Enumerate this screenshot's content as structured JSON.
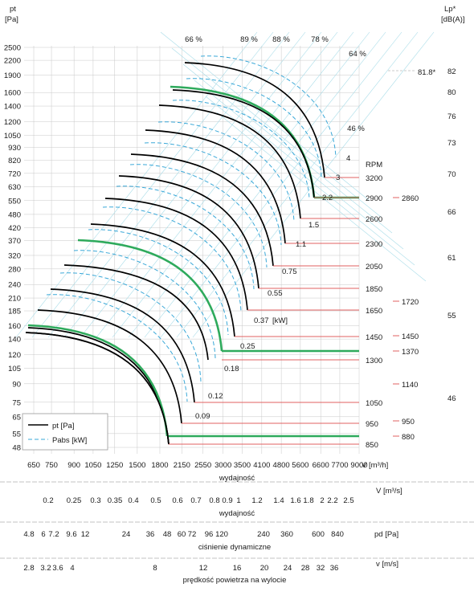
{
  "chart_data": {
    "type": "line",
    "y_axis_left": {
      "title_line1": "pt",
      "title_line2": "[Pa]",
      "scale": "log",
      "ticks": [
        "2500",
        "2200",
        "1900",
        "1600",
        "1400",
        "1200",
        "1050",
        "930",
        "820",
        "720",
        "630",
        "550",
        "480",
        "420",
        "370",
        "320",
        "280",
        "240",
        "210",
        "185",
        "160",
        "140",
        "120",
        "105",
        "90",
        "75",
        "65",
        "55",
        "48"
      ]
    },
    "y_axis_right": {
      "title_line1": "Lp*",
      "title_line2": "[dB(A)]",
      "ticks": [
        "82",
        "80",
        "76",
        "73",
        "70",
        "66",
        "61",
        "55",
        "46"
      ],
      "marker_label": "81.8*"
    },
    "x_axis_volume_m3h": {
      "scale": "log",
      "ticks": [
        "650",
        "750",
        "900",
        "1050",
        "1250",
        "1500",
        "1800",
        "2150",
        "2550",
        "3000",
        "3500",
        "4100",
        "4800",
        "5600",
        "6600",
        "7700",
        "9000"
      ],
      "axis_symbol": "V [m³/h]",
      "title": "wydajność"
    },
    "x_axis_volume_m3s": {
      "ticks": [
        "0.2",
        "0.25",
        "0.3",
        "0.35",
        "0.4",
        "0.5",
        "0.6",
        "0.7",
        "0.8",
        "0.9",
        "1",
        "1.2",
        "1.4",
        "1.6",
        "1.8",
        "2",
        "2.2",
        "2.5"
      ],
      "axis_symbol": "V  [m³/s]",
      "title": "wydajność"
    },
    "x_axis_dynamic_pressure": {
      "ticks": [
        "4.8",
        "6",
        "7.2",
        "9.6",
        "12",
        "24",
        "36",
        "48",
        "60",
        "72",
        "96",
        "120",
        "240",
        "360",
        "600",
        "840"
      ],
      "axis_symbol": "pd  [Pa]",
      "title": "ciśnienie dynamiczne"
    },
    "x_axis_outlet_velocity": {
      "ticks": [
        "2.8",
        "3.2",
        "3.6",
        "4",
        "8",
        "12",
        "16",
        "20",
        "24",
        "28",
        "32",
        "36"
      ],
      "axis_symbol": "v  [m/s]",
      "title": "prędkość powietrza na wylocie"
    },
    "efficiency_labels": [
      "66 %",
      "89 %",
      "88 %",
      "78 %",
      "64 %",
      "46 %"
    ],
    "rpm_title": "RPM",
    "rpm_lines": [
      "3200",
      "2900",
      "2600",
      "2300",
      "2050",
      "1850",
      "1650",
      "1450",
      "1300",
      "1050",
      "950",
      "850"
    ],
    "rpm_secondary": [
      "2860",
      "1720",
      "1450",
      "1370",
      "1140",
      "950",
      "880"
    ],
    "power_labels": [
      "4",
      "3",
      "2.2",
      "1.5",
      "1.1",
      "0.75",
      "0.55",
      "0.37",
      "0.25",
      "0.18",
      "0.12",
      "0.09"
    ],
    "power_unit": "[kW]",
    "legend": [
      "pt [Pa]",
      "Pabs [kW]"
    ],
    "series_curves": [
      {
        "rpm": 3200,
        "color": "#000000"
      },
      {
        "rpm": 3050,
        "color": "#2eaa5c"
      },
      {
        "rpm": 2900,
        "color": "#000000"
      },
      {
        "rpm": 2750,
        "color": "#000000"
      },
      {
        "rpm": 2600,
        "color": "#000000"
      },
      {
        "rpm": 2450,
        "color": "#000000"
      },
      {
        "rpm": 2300,
        "color": "#000000"
      },
      {
        "rpm": 2175,
        "color": "#000000"
      },
      {
        "rpm": 2050,
        "color": "#000000"
      },
      {
        "rpm": 1850,
        "color": "#000000"
      },
      {
        "rpm": 1730,
        "color": "#2eaa5c"
      },
      {
        "rpm": 1650,
        "color": "#000000"
      },
      {
        "rpm": 1450,
        "color": "#000000"
      },
      {
        "rpm": 1300,
        "color": "#000000"
      },
      {
        "rpm": 1050,
        "color": "#000000"
      },
      {
        "rpm": 950,
        "color": "#000000"
      },
      {
        "rpm": 880,
        "color": "#2eaa5c"
      },
      {
        "rpm": 850,
        "color": "#000000"
      }
    ],
    "colors": {
      "pt": "#000000",
      "pabs": "#3aa8d8",
      "highlight": "#2eaa5c",
      "rpm_line": "#e06060",
      "grid": "#c8c8c8",
      "guide": "#a8dce8"
    }
  }
}
